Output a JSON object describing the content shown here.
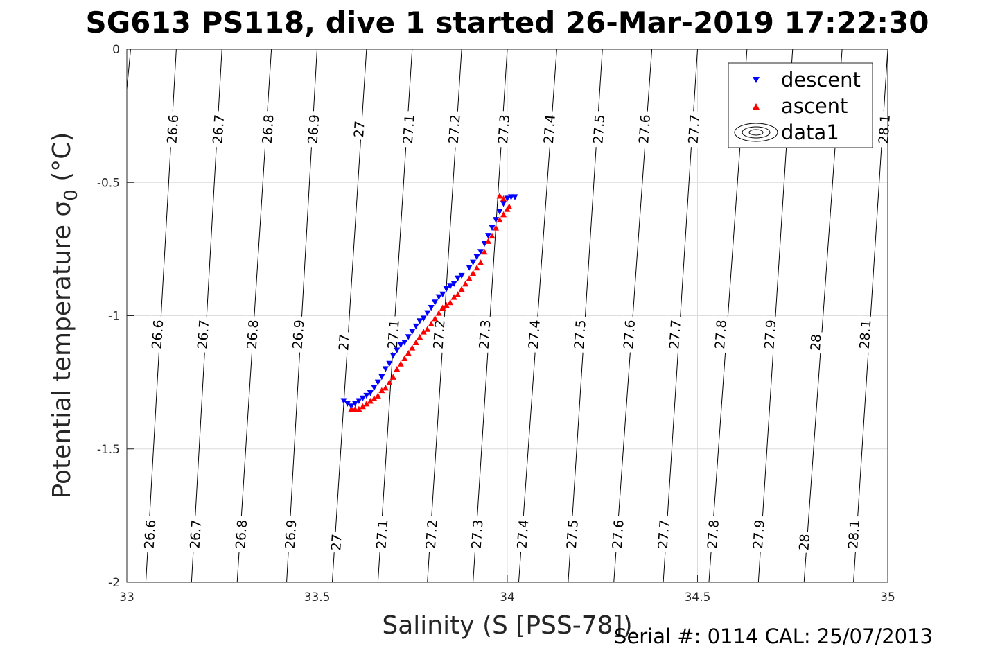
{
  "chart_data": {
    "type": "scatter",
    "title": "SG613 PS118, dive 1 started 26-Mar-2019 17:22:30",
    "xlabel": "Salinity (S [PSS-78])",
    "ylabel": "Potential temperature σ",
    "ylabel_sub": "0",
    "ylabel_unit": " (°C)",
    "xlim": [
      33,
      35
    ],
    "ylim": [
      -2,
      0
    ],
    "grid": true,
    "legend_position": "top-right",
    "x_ticks": [
      33,
      33.5,
      34,
      34.5,
      35
    ],
    "x_tick_labels": [
      "33",
      "33.5",
      "34",
      "34.5",
      "35"
    ],
    "y_ticks": [
      0,
      -0.5,
      -1,
      -1.5,
      -2
    ],
    "y_tick_labels": [
      "0",
      "-0.5",
      "-1",
      "-1.5",
      "-2"
    ],
    "series": [
      {
        "name": "descent",
        "color": "#0000ff",
        "marker": "triangle-down",
        "points": [
          [
            33.57,
            -1.32
          ],
          [
            33.58,
            -1.33
          ],
          [
            33.59,
            -1.34
          ],
          [
            33.6,
            -1.33
          ],
          [
            33.61,
            -1.32
          ],
          [
            33.62,
            -1.31
          ],
          [
            33.63,
            -1.3
          ],
          [
            33.64,
            -1.29
          ],
          [
            33.65,
            -1.27
          ],
          [
            33.66,
            -1.25
          ],
          [
            33.67,
            -1.23
          ],
          [
            33.68,
            -1.2
          ],
          [
            33.69,
            -1.18
          ],
          [
            33.7,
            -1.15
          ],
          [
            33.71,
            -1.13
          ],
          [
            33.72,
            -1.11
          ],
          [
            33.73,
            -1.1
          ],
          [
            33.74,
            -1.08
          ],
          [
            33.75,
            -1.06
          ],
          [
            33.76,
            -1.04
          ],
          [
            33.77,
            -1.02
          ],
          [
            33.78,
            -1.01
          ],
          [
            33.79,
            -0.99
          ],
          [
            33.8,
            -0.97
          ],
          [
            33.81,
            -0.95
          ],
          [
            33.82,
            -0.93
          ],
          [
            33.83,
            -0.92
          ],
          [
            33.84,
            -0.9
          ],
          [
            33.85,
            -0.89
          ],
          [
            33.86,
            -0.88
          ],
          [
            33.87,
            -0.86
          ],
          [
            33.88,
            -0.85
          ],
          [
            33.9,
            -0.82
          ],
          [
            33.91,
            -0.8
          ],
          [
            33.92,
            -0.78
          ],
          [
            33.93,
            -0.76
          ],
          [
            33.94,
            -0.73
          ],
          [
            33.95,
            -0.7
          ],
          [
            33.96,
            -0.67
          ],
          [
            33.97,
            -0.64
          ],
          [
            33.98,
            -0.61
          ],
          [
            33.99,
            -0.58
          ],
          [
            34.0,
            -0.56
          ],
          [
            34.01,
            -0.555
          ],
          [
            34.02,
            -0.555
          ]
        ]
      },
      {
        "name": "ascent",
        "color": "#ff0000",
        "marker": "triangle-up",
        "points": [
          [
            33.59,
            -1.35
          ],
          [
            33.6,
            -1.35
          ],
          [
            33.61,
            -1.35
          ],
          [
            33.62,
            -1.34
          ],
          [
            33.63,
            -1.33
          ],
          [
            33.64,
            -1.32
          ],
          [
            33.65,
            -1.31
          ],
          [
            33.66,
            -1.3
          ],
          [
            33.67,
            -1.28
          ],
          [
            33.68,
            -1.27
          ],
          [
            33.69,
            -1.25
          ],
          [
            33.7,
            -1.23
          ],
          [
            33.71,
            -1.2
          ],
          [
            33.72,
            -1.18
          ],
          [
            33.73,
            -1.16
          ],
          [
            33.74,
            -1.14
          ],
          [
            33.75,
            -1.12
          ],
          [
            33.76,
            -1.1
          ],
          [
            33.77,
            -1.08
          ],
          [
            33.78,
            -1.06
          ],
          [
            33.79,
            -1.05
          ],
          [
            33.8,
            -1.03
          ],
          [
            33.81,
            -1.01
          ],
          [
            33.82,
            -0.99
          ],
          [
            33.83,
            -0.97
          ],
          [
            33.84,
            -0.96
          ],
          [
            33.85,
            -0.95
          ],
          [
            33.86,
            -0.93
          ],
          [
            33.87,
            -0.92
          ],
          [
            33.88,
            -0.9
          ],
          [
            33.89,
            -0.88
          ],
          [
            33.9,
            -0.86
          ],
          [
            33.91,
            -0.84
          ],
          [
            33.92,
            -0.82
          ],
          [
            33.93,
            -0.8
          ],
          [
            33.94,
            -0.76
          ],
          [
            33.95,
            -0.72
          ],
          [
            33.96,
            -0.7
          ],
          [
            33.97,
            -0.67
          ],
          [
            33.98,
            -0.64
          ],
          [
            33.99,
            -0.62
          ],
          [
            34.0,
            -0.6
          ],
          [
            34.005,
            -0.59
          ],
          [
            33.98,
            -0.55
          ],
          [
            33.99,
            -0.56
          ]
        ]
      }
    ],
    "contour_legend_name": "data1",
    "contours": [
      {
        "level": "26.6",
        "s_top": 33.13,
        "s_bottom": 33.05
      },
      {
        "level": "26.7",
        "s_top": 33.25,
        "s_bottom": 33.17
      },
      {
        "level": "26.8",
        "s_top": 33.38,
        "s_bottom": 33.29
      },
      {
        "level": "26.9",
        "s_top": 33.5,
        "s_bottom": 33.42
      },
      {
        "level": "27",
        "s_top": 33.63,
        "s_bottom": 33.54
      },
      {
        "level": "27.1",
        "s_top": 33.75,
        "s_bottom": 33.66
      },
      {
        "level": "27.2",
        "s_top": 33.88,
        "s_bottom": 33.79
      },
      {
        "level": "27.3",
        "s_top": 34.0,
        "s_bottom": 33.91
      },
      {
        "level": "27.4",
        "s_top": 34.13,
        "s_bottom": 34.03
      },
      {
        "level": "27.5",
        "s_top": 34.25,
        "s_bottom": 34.16
      },
      {
        "level": "27.6",
        "s_top": 34.38,
        "s_bottom": 34.28
      },
      {
        "level": "27.7",
        "s_top": 34.5,
        "s_bottom": 34.41
      },
      {
        "level": "27.8",
        "s_top": 34.63,
        "s_bottom": 34.53
      },
      {
        "level": "27.9",
        "s_top": 34.75,
        "s_bottom": 34.66
      },
      {
        "level": "28",
        "s_top": 34.88,
        "s_bottom": 34.78
      },
      {
        "level": "28.1",
        "s_top": 35.0,
        "s_bottom": 34.91
      }
    ],
    "contour_labels": [
      {
        "level": "26.6",
        "s": 33.12,
        "t": -0.3
      },
      {
        "level": "26.7",
        "s": 33.24,
        "t": -0.3
      },
      {
        "level": "26.8",
        "s": 33.37,
        "t": -0.3
      },
      {
        "level": "26.9",
        "s": 33.49,
        "t": -0.3
      },
      {
        "level": "27",
        "s": 33.61,
        "t": -0.3
      },
      {
        "level": "27.1",
        "s": 33.74,
        "t": -0.3
      },
      {
        "level": "27.2",
        "s": 33.86,
        "t": -0.3
      },
      {
        "level": "27.3",
        "s": 33.99,
        "t": -0.3
      },
      {
        "level": "27.4",
        "s": 34.11,
        "t": -0.3
      },
      {
        "level": "27.5",
        "s": 34.24,
        "t": -0.3
      },
      {
        "level": "27.6",
        "s": 34.36,
        "t": -0.3
      },
      {
        "level": "27.7",
        "s": 34.49,
        "t": -0.3
      },
      {
        "level": "28.1",
        "s": 34.99,
        "t": -0.3
      },
      {
        "level": "26.6",
        "s": 33.08,
        "t": -1.07
      },
      {
        "level": "26.7",
        "s": 33.2,
        "t": -1.07
      },
      {
        "level": "26.8",
        "s": 33.33,
        "t": -1.07
      },
      {
        "level": "26.9",
        "s": 33.45,
        "t": -1.07
      },
      {
        "level": "27",
        "s": 33.57,
        "t": -1.1
      },
      {
        "level": "27.1",
        "s": 33.7,
        "t": -1.07
      },
      {
        "level": "27.2",
        "s": 33.82,
        "t": -1.07
      },
      {
        "level": "27.3",
        "s": 33.94,
        "t": -1.07
      },
      {
        "level": "27.4",
        "s": 34.07,
        "t": -1.07
      },
      {
        "level": "27.5",
        "s": 34.19,
        "t": -1.07
      },
      {
        "level": "27.6",
        "s": 34.32,
        "t": -1.07
      },
      {
        "level": "27.7",
        "s": 34.44,
        "t": -1.07
      },
      {
        "level": "27.8",
        "s": 34.56,
        "t": -1.07
      },
      {
        "level": "27.9",
        "s": 34.69,
        "t": -1.07
      },
      {
        "level": "28",
        "s": 34.81,
        "t": -1.1
      },
      {
        "level": "28.1",
        "s": 34.94,
        "t": -1.07
      },
      {
        "level": "26.6",
        "s": 33.06,
        "t": -1.82
      },
      {
        "level": "26.7",
        "s": 33.18,
        "t": -1.82
      },
      {
        "level": "26.8",
        "s": 33.3,
        "t": -1.82
      },
      {
        "level": "26.9",
        "s": 33.43,
        "t": -1.82
      },
      {
        "level": "27",
        "s": 33.55,
        "t": -1.85
      },
      {
        "level": "27.1",
        "s": 33.67,
        "t": -1.82
      },
      {
        "level": "27.2",
        "s": 33.8,
        "t": -1.82
      },
      {
        "level": "27.3",
        "s": 33.92,
        "t": -1.82
      },
      {
        "level": "27.4",
        "s": 34.04,
        "t": -1.82
      },
      {
        "level": "27.5",
        "s": 34.17,
        "t": -1.82
      },
      {
        "level": "27.6",
        "s": 34.29,
        "t": -1.82
      },
      {
        "level": "27.7",
        "s": 34.41,
        "t": -1.82
      },
      {
        "level": "27.8",
        "s": 34.54,
        "t": -1.82
      },
      {
        "level": "27.9",
        "s": 34.66,
        "t": -1.82
      },
      {
        "level": "28",
        "s": 34.78,
        "t": -1.85
      },
      {
        "level": "28.1",
        "s": 34.91,
        "t": -1.82
      }
    ]
  },
  "footer": {
    "serial_text": "Serial #: 0114  CAL: 25/07/2013"
  }
}
